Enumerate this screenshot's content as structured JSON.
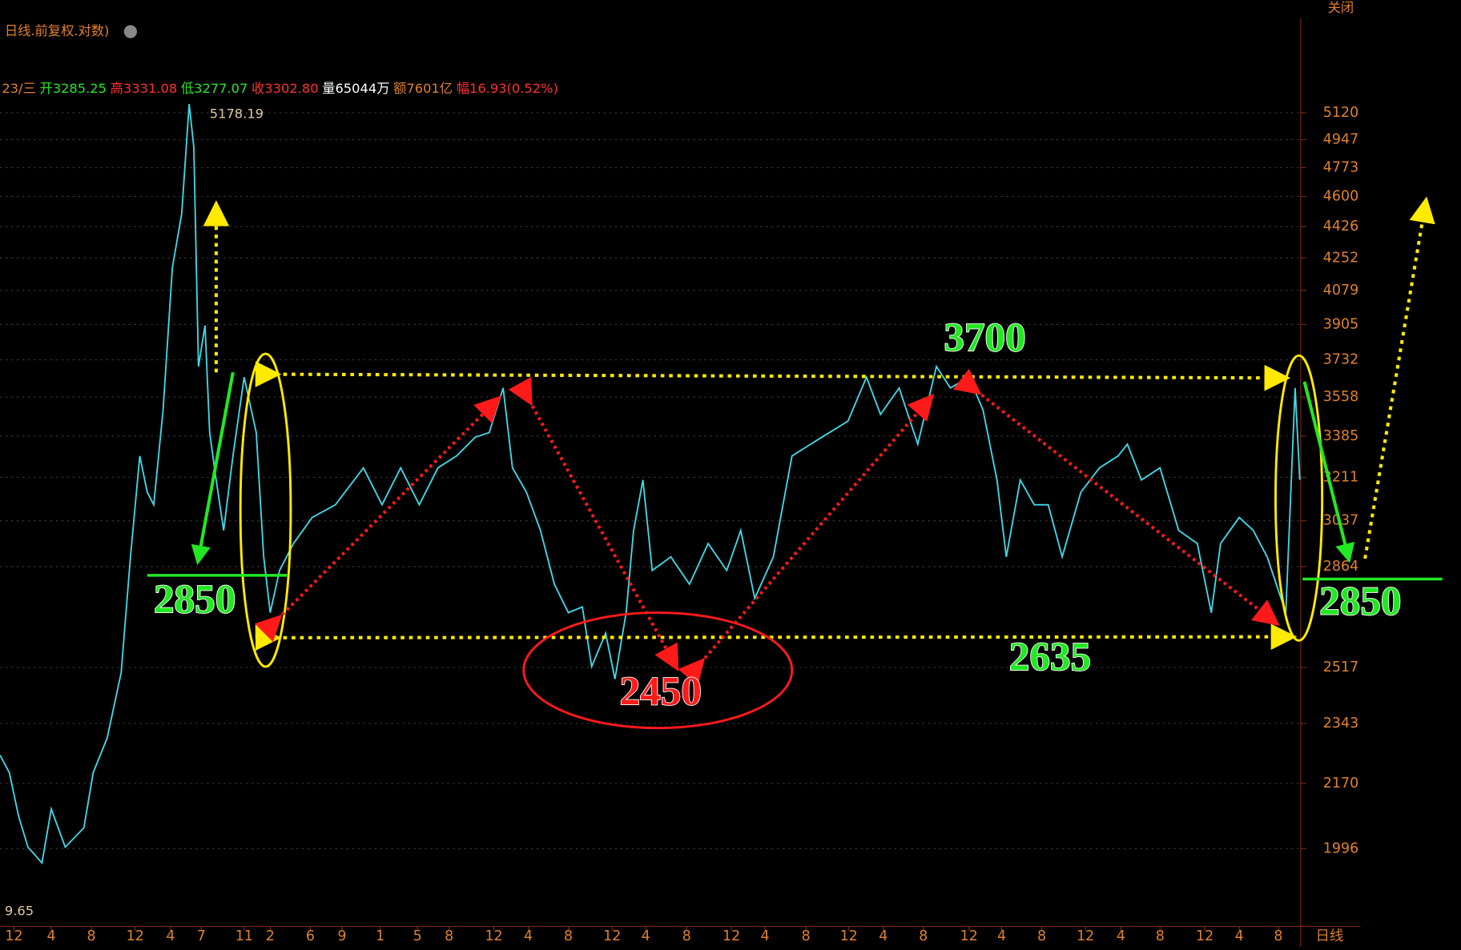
{
  "chart_data": {
    "type": "line",
    "log_scale": true,
    "grid": true,
    "header": "日线.前复权.对数)",
    "close_button": "关闭",
    "period_label": "日线",
    "quote": [
      "23/三",
      "开3285.25",
      "高3331.08",
      "低3277.07",
      "收3302.80",
      "量65044万",
      "额7601亿",
      "幅16.93(0.52%)"
    ],
    "max_label": 5178.19,
    "min_label": "9.65",
    "annotations": [
      "2850",
      "3700",
      "2450",
      "2635",
      "2850"
    ],
    "xlim": [
      0,
      1395
    ],
    "ylim": [
      1818,
      5640
    ],
    "yticks": [
      5120,
      4947,
      4773,
      4600,
      4426,
      4252,
      4079,
      3905,
      3732,
      3558,
      3385,
      3211,
      3037,
      2864,
      2517,
      2343,
      2170,
      1996
    ],
    "xticks": [
      {
        "value": 15,
        "label": "12"
      },
      {
        "value": 55,
        "label": "4"
      },
      {
        "value": 98,
        "label": "8"
      },
      {
        "value": 145,
        "label": "12"
      },
      {
        "value": 183,
        "label": "4"
      },
      {
        "value": 216,
        "label": "7"
      },
      {
        "value": 262,
        "label": "11"
      },
      {
        "value": 290,
        "label": "2"
      },
      {
        "value": 333,
        "label": "6"
      },
      {
        "value": 367,
        "label": "9"
      },
      {
        "value": 408,
        "label": "1"
      },
      {
        "value": 448,
        "label": "5"
      },
      {
        "value": 482,
        "label": "8"
      },
      {
        "value": 530,
        "label": "12"
      },
      {
        "value": 567,
        "label": "4"
      },
      {
        "value": 610,
        "label": "8"
      },
      {
        "value": 657,
        "label": "12"
      },
      {
        "value": 693,
        "label": "4"
      },
      {
        "value": 737,
        "label": "8"
      },
      {
        "value": 785,
        "label": "12"
      },
      {
        "value": 821,
        "label": "4"
      },
      {
        "value": 865,
        "label": "8"
      },
      {
        "value": 911,
        "label": "12"
      },
      {
        "value": 948,
        "label": "4"
      },
      {
        "value": 991,
        "label": "8"
      },
      {
        "value": 1040,
        "label": "12"
      },
      {
        "value": 1075,
        "label": "4"
      },
      {
        "value": 1118,
        "label": "8"
      },
      {
        "value": 1165,
        "label": "12"
      },
      {
        "value": 1203,
        "label": "4"
      },
      {
        "value": 1245,
        "label": "8"
      },
      {
        "value": 1293,
        "label": "12"
      },
      {
        "value": 1330,
        "label": "4"
      },
      {
        "value": 1372,
        "label": "8"
      }
    ],
    "x": [
      0,
      10,
      20,
      30,
      45,
      55,
      70,
      90,
      100,
      115,
      130,
      140,
      150,
      158,
      165,
      175,
      185,
      195,
      203,
      208,
      213,
      220,
      225,
      232,
      240,
      250,
      262,
      275,
      283,
      290,
      300,
      315,
      335,
      360,
      390,
      410,
      430,
      450,
      470,
      490,
      510,
      525,
      540,
      550,
      565,
      580,
      595,
      610,
      625,
      635,
      650,
      660,
      672,
      680,
      690,
      700,
      720,
      740,
      760,
      780,
      795,
      810,
      830,
      850,
      870,
      890,
      910,
      930,
      945,
      965,
      985,
      1005,
      1020,
      1040,
      1055,
      1070,
      1080,
      1095,
      1110,
      1125,
      1140,
      1160,
      1180,
      1200,
      1210,
      1225,
      1245,
      1265,
      1285,
      1300,
      1310,
      1330,
      1345,
      1360,
      1380,
      1390,
      1395
    ],
    "series": [
      {
        "color": "#3fd8e8",
        "values": [
          2250,
          2200,
          2080,
          2000,
          1960,
          2100,
          2000,
          2050,
          2200,
          2300,
          2500,
          2900,
          3300,
          3150,
          3100,
          3500,
          4200,
          4500,
          5178,
          4900,
          3700,
          3900,
          3400,
          3200,
          3000,
          3300,
          3650,
          3400,
          2900,
          2700,
          2850,
          2950,
          3050,
          3100,
          3250,
          3100,
          3250,
          3100,
          3250,
          3300,
          3380,
          3400,
          3600,
          3250,
          3150,
          3000,
          2800,
          2700,
          2720,
          2520,
          2630,
          2480,
          2700,
          3000,
          3200,
          2850,
          2900,
          2800,
          2950,
          2850,
          3000,
          2750,
          2900,
          3300,
          3350,
          3400,
          3450,
          3650,
          3480,
          3600,
          3350,
          3700,
          3600,
          3650,
          3500,
          3200,
          2900,
          3200,
          3100,
          3100,
          2900,
          3150,
          3250,
          3300,
          3350,
          3200,
          3250,
          3000,
          2950,
          2700,
          2950,
          3050,
          3000,
          2900,
          2700,
          3600,
          3200
        ]
      }
    ]
  }
}
